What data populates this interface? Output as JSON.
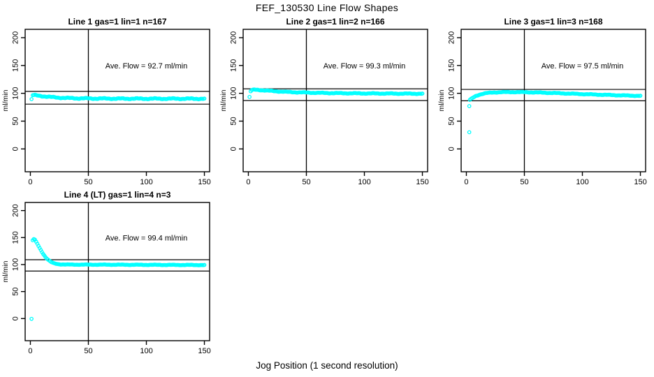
{
  "figure": {
    "title": "FEF_130530  Line Flow Shapes",
    "xlabel": "Jog Position (1 second resolution)",
    "background": "#ffffff",
    "box_color": "#000000",
    "marker_color": "#00ffff"
  },
  "chart_data": [
    {
      "type": "scatter",
      "title": "Line 1 gas=1 lin=1 n=167",
      "annotation": "Ave. Flow =  92.7  ml/min",
      "ave_flow": 92.7,
      "n": 167,
      "ylabel": "ml/min",
      "x_ticks": [
        0,
        50,
        100,
        150
      ],
      "y_ticks": [
        0,
        50,
        100,
        150,
        200
      ],
      "xlim": [
        -4.5,
        154.5
      ],
      "ylim": [
        -41,
        215
      ],
      "vline_x": 50,
      "hlines": [
        103.5,
        80.5
      ],
      "annotation_xy": [
        100,
        150
      ],
      "marker": "open-circle",
      "marker_color": "#00ffff",
      "jitter": 1.0,
      "outliers": [
        [
          1,
          89.5
        ]
      ],
      "shape_points": [
        [
          2,
          96.5
        ],
        [
          4,
          96.5
        ],
        [
          7,
          95.8
        ],
        [
          10,
          95
        ],
        [
          14,
          94
        ],
        [
          18,
          93.2
        ],
        [
          24,
          92.3
        ],
        [
          30,
          91.6
        ],
        [
          40,
          91
        ],
        [
          55,
          90.6
        ],
        [
          75,
          90.4
        ],
        [
          100,
          90.3
        ],
        [
          125,
          90.3
        ],
        [
          150,
          90.2
        ]
      ]
    },
    {
      "type": "scatter",
      "title": "Line 2 gas=1 lin=2 n=166",
      "annotation": "Ave. Flow =  99.3  ml/min",
      "ave_flow": 99.3,
      "n": 166,
      "ylabel": "ml/min",
      "x_ticks": [
        0,
        50,
        100,
        150
      ],
      "y_ticks": [
        0,
        50,
        100,
        150,
        200
      ],
      "xlim": [
        -4.5,
        154.5
      ],
      "ylim": [
        -41,
        215
      ],
      "vline_x": 50,
      "hlines": [
        108,
        87
      ],
      "annotation_xy": [
        100,
        150
      ],
      "marker": "open-circle",
      "marker_color": "#00ffff",
      "jitter": 0.7,
      "outliers": [
        [
          1,
          93.5
        ]
      ],
      "shape_points": [
        [
          2,
          103.5
        ],
        [
          3,
          105.5
        ],
        [
          5,
          106.5
        ],
        [
          8,
          106.3
        ],
        [
          12,
          105.5
        ],
        [
          18,
          104.5
        ],
        [
          25,
          103.5
        ],
        [
          33,
          102.5
        ],
        [
          42,
          101.8
        ],
        [
          52,
          101.2
        ],
        [
          65,
          100.6
        ],
        [
          80,
          100.2
        ],
        [
          100,
          99.8
        ],
        [
          125,
          99.5
        ],
        [
          150,
          99.3
        ]
      ]
    },
    {
      "type": "scatter",
      "title": "Line 3 gas=1 lin=3 n=168",
      "annotation": "Ave. Flow =  97.5  ml/min",
      "ave_flow": 97.5,
      "n": 168,
      "ylabel": "ml/min",
      "x_ticks": [
        0,
        50,
        100,
        150
      ],
      "y_ticks": [
        0,
        50,
        100,
        150,
        200
      ],
      "xlim": [
        -4.5,
        154.5
      ],
      "ylim": [
        -41,
        215
      ],
      "vline_x": 50,
      "hlines": [
        107,
        86.5
      ],
      "annotation_xy": [
        100,
        150
      ],
      "marker": "open-circle",
      "marker_color": "#00ffff",
      "jitter": 0.6,
      "outliers": [
        [
          2.5,
          30
        ],
        [
          2.5,
          77
        ]
      ],
      "shape_points": [
        [
          3,
          88
        ],
        [
          4,
          89.5
        ],
        [
          6,
          92.5
        ],
        [
          8,
          95
        ],
        [
          11,
          97.5
        ],
        [
          14,
          99
        ],
        [
          18,
          100.5
        ],
        [
          23,
          101.5
        ],
        [
          30,
          102
        ],
        [
          42,
          102.2
        ],
        [
          55,
          101.8
        ],
        [
          68,
          101
        ],
        [
          80,
          100.2
        ],
        [
          92,
          99.2
        ],
        [
          105,
          98.2
        ],
        [
          118,
          97.3
        ],
        [
          132,
          96.4
        ],
        [
          150,
          95.4
        ]
      ]
    },
    {
      "type": "scatter",
      "title": "Line 4 (LT) gas=1 lin=4 n=3",
      "annotation": "Ave. Flow =  99.4  ml/min",
      "ave_flow": 99.4,
      "n": 3,
      "ylabel": "ml/min",
      "x_ticks": [
        0,
        50,
        100,
        150
      ],
      "y_ticks": [
        0,
        50,
        100,
        150,
        200
      ],
      "xlim": [
        -4.5,
        154.5
      ],
      "ylim": [
        -41,
        215
      ],
      "vline_x": 50,
      "hlines": [
        109,
        88
      ],
      "annotation_xy": [
        100,
        150
      ],
      "marker": "open-circle",
      "marker_color": "#00ffff",
      "jitter": 0.5,
      "outliers": [
        [
          1,
          -0.5
        ]
      ],
      "shape_points": [
        [
          2,
          145
        ],
        [
          3,
          147
        ],
        [
          4,
          145.5
        ],
        [
          5,
          142
        ],
        [
          6,
          138.5
        ],
        [
          7,
          134.5
        ],
        [
          8,
          130.5
        ],
        [
          9,
          127
        ],
        [
          10,
          123.5
        ],
        [
          11,
          120
        ],
        [
          12,
          117
        ],
        [
          13,
          114
        ],
        [
          14,
          111.5
        ],
        [
          15,
          109.5
        ],
        [
          16,
          107.5
        ],
        [
          17,
          106
        ],
        [
          18,
          104.5
        ],
        [
          19,
          103.5
        ],
        [
          20,
          102.5
        ],
        [
          22,
          101.5
        ],
        [
          24,
          100.8
        ],
        [
          27,
          100.3
        ],
        [
          31,
          100
        ],
        [
          40,
          99.9
        ],
        [
          55,
          99.8
        ],
        [
          75,
          99.7
        ],
        [
          100,
          99.5
        ],
        [
          125,
          99.3
        ],
        [
          150,
          99.1
        ]
      ]
    }
  ]
}
